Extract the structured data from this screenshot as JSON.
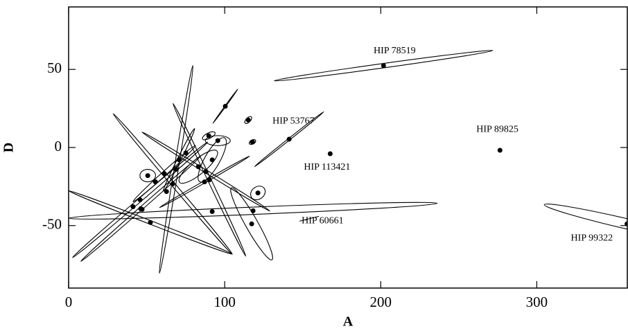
{
  "chart_data": {
    "type": "scatter",
    "x_label": "A",
    "y_label": "D",
    "xlim": [
      0,
      358
    ],
    "ylim": [
      -90,
      90
    ],
    "xticks": [
      0,
      100,
      200,
      300
    ],
    "yticks": [
      -50,
      0,
      50
    ],
    "color": "#000000",
    "series": [
      {
        "x": [
          201.8,
          141.3,
          167.6,
          276.4,
          118.2,
          357.8,
          100.4,
          115.1,
          117.8,
          121.3,
          117.3,
          92.0,
          95.6,
          89.8,
          68.9,
          50.7,
          41.3,
          47.1,
          66.7,
          75.1,
          83.1,
          88.0,
          90.2,
          46.2,
          87.1,
          70.7,
          92.0,
          61.3,
          55.6,
          45.8,
          62.7,
          52.4
        ],
        "y": [
          52.4,
          5.3,
          -4.0,
          -1.8,
          -40.5,
          -48.9,
          26.4,
          17.6,
          3.5,
          -29.1,
          -48.9,
          -41.0,
          4.4,
          7.5,
          -14.0,
          -18.0,
          -37.9,
          -39.6,
          -23.3,
          -3.5,
          -12.3,
          -15.4,
          -20.7,
          -39.2,
          -22.0,
          -7.9,
          -7.9,
          -16.7,
          -22.0,
          -33.5,
          -28.2,
          -48.0
        ],
        "ellipse_dx": [
          70,
          22.2,
          0,
          0,
          118,
          -53,
          8,
          2,
          2,
          4,
          13,
          0,
          8,
          4,
          10.7,
          5,
          0,
          0,
          38.2,
          0,
          12,
          41,
          23.3,
          38.4,
          28.9,
          10,
          8,
          20,
          0,
          43.3,
          0,
          52.4
        ],
        "ellipse_dy": [
          9.7,
          17.6,
          0,
          0,
          4.8,
          12.3,
          11,
          2,
          1,
          3,
          -23,
          0,
          0,
          2,
          66.5,
          0,
          0,
          0,
          -45,
          0,
          10,
          -25.3,
          -48.9,
          33.7,
          16.5,
          20,
          14,
          18,
          0,
          37,
          0,
          -20.3
        ],
        "ellipse_ratio": [
          0.02,
          0.02,
          0,
          0,
          0.02,
          0.06,
          0.02,
          0.5,
          0.6,
          0.8,
          0.15,
          0,
          0.4,
          0.4,
          0.02,
          0.8,
          0,
          0,
          0.02,
          0,
          0.3,
          0.02,
          0.02,
          0.02,
          0.02,
          0.05,
          0.3,
          0.05,
          0,
          0.02,
          0,
          0.02
        ],
        "labels": [
          "HIP 78519",
          "HIP 53767",
          "HIP 113421",
          "HIP 89825",
          "HIP 60661",
          "HIP 99322",
          null,
          null,
          null,
          null,
          null,
          null,
          null,
          null,
          null,
          null,
          null,
          null,
          null,
          null,
          null,
          null,
          null,
          null,
          null,
          null,
          null,
          null,
          null,
          null,
          null,
          null
        ]
      }
    ]
  }
}
